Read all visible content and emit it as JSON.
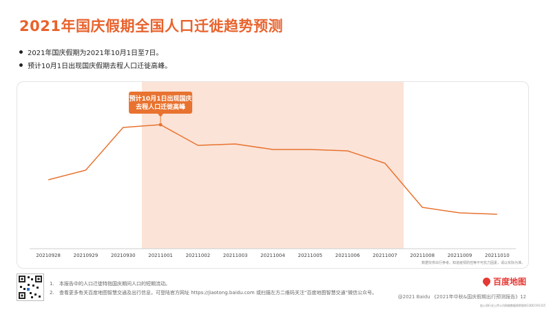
{
  "page": {
    "title": "2021年国庆假期全国人口迁徙趋势预测",
    "bullets": [
      "2021年国庆假期为2021年10月1日至7日。",
      "预计10月1日出现国庆假期去程人口迁徙高峰。"
    ],
    "chart_note": "数据仅供出行参考。知道疫情防控等不可抗力因素，请以实际为准。",
    "footnotes": [
      {
        "num": "1.",
        "text": "本报告中的人口迁徙特指国庆期间人口的短期流动。"
      },
      {
        "num": "2.",
        "text": "查看更多有关百度地图智慧交通及出行信息，可登陆官方网址 https://jiaotong.baidu.com 或扫描左方二维码关注“百度地图智慧交通”微信公众号。"
      }
    ],
    "brand": "百度地图",
    "copyright": "@2021 Baidu 《2021年中秋&国庆假期出行预测报告》12",
    "license": "加入同行业上传公司网络数据保密规则13DI2191315"
  },
  "colors": {
    "accent": "#e8722f",
    "highlight_band": "#fbe3d7",
    "callout_bg": "#e8722f",
    "callout_text": "#ffffff"
  },
  "chart_data": {
    "type": "line",
    "categories": [
      "20210928",
      "20210929",
      "20210930",
      "20211001",
      "20211002",
      "20211003",
      "20211004",
      "20211005",
      "20211006",
      "20211007",
      "20211008",
      "20211009",
      "20211010"
    ],
    "series": [
      {
        "values": [
          50,
          57,
          88,
          90,
          75,
          76,
          72,
          72,
          71,
          62,
          30,
          26,
          25
        ]
      }
    ],
    "ylim": [
      0,
      115
    ],
    "y_axis_shown": false,
    "grid": false,
    "highlight_range": [
      "20211001",
      "20211007"
    ],
    "annotation": {
      "category": "20211001",
      "lines": [
        "预计10月1日出现国庆",
        "去程人口迁徙高峰"
      ]
    }
  }
}
